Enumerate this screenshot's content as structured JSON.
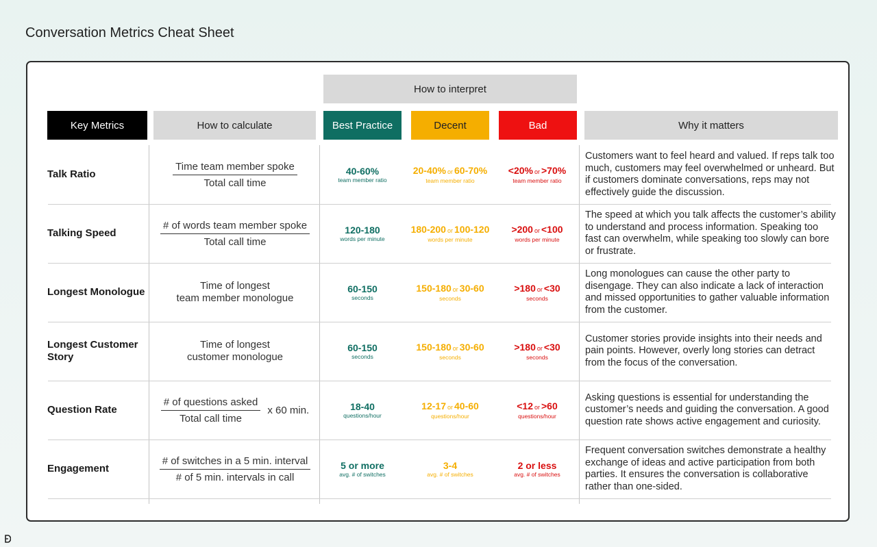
{
  "page_title": "Conversation Metrics Cheat Sheet",
  "headers": {
    "interpret": "How to interpret",
    "key_metrics": "Key Metrics",
    "calculate": "How to calculate",
    "best": "Best Practice",
    "decent": "Decent",
    "bad": "Bad",
    "why": "Why it matters"
  },
  "colors": {
    "best": "#0f6e62",
    "decent": "#f5ae00",
    "bad": "#ee1111",
    "header_gray": "#d9d9d9"
  },
  "rows": [
    {
      "name": "Talk Ratio",
      "calc": {
        "type": "fraction",
        "numerator": "Time team member spoke",
        "denominator": "Total call time",
        "multiplier": ""
      },
      "best": {
        "a": "40-60%",
        "or": "",
        "b": "",
        "sub": "team member ratio"
      },
      "decent": {
        "a": "20-40%",
        "or": "or",
        "b": "60-70%",
        "sub": "team member ratio"
      },
      "bad": {
        "a": "<20%",
        "or": "or",
        "b": ">70%",
        "sub": "team member ratio"
      },
      "why": "Customers want to feel heard and valued. If reps talk too much, customers may feel overwhelmed or unheard. But if customers dominate conversations, reps may not effectively guide the discussion."
    },
    {
      "name": "Talking Speed",
      "calc": {
        "type": "fraction",
        "numerator": "# of words team member spoke",
        "denominator": "Total call time",
        "multiplier": ""
      },
      "best": {
        "a": "120-180",
        "or": "",
        "b": "",
        "sub": "words per minute"
      },
      "decent": {
        "a": "180-200",
        "or": "or",
        "b": "100-120",
        "sub": "words per minute"
      },
      "bad": {
        "a": ">200",
        "or": "or",
        "b": "<100",
        "sub": "words per minute"
      },
      "why": "The speed at which you talk affects the customer’s ability to understand and process information. Speaking too fast can overwhelm, while speaking too slowly can bore or frustrate."
    },
    {
      "name": "Longest Monologue",
      "calc": {
        "type": "text",
        "line1": "Time of longest",
        "line2": "team member monologue"
      },
      "best": {
        "a": "60-150",
        "or": "",
        "b": "",
        "sub": "seconds"
      },
      "decent": {
        "a": "150-180",
        "or": "or",
        "b": "30-60",
        "sub": "seconds"
      },
      "bad": {
        "a": ">180",
        "or": "or",
        "b": "<30",
        "sub": "seconds"
      },
      "why": "Long monologues can cause the other party to disengage. They can also indicate a lack of interaction and missed opportunities to gather valuable information from the customer."
    },
    {
      "name": "Longest Customer Story",
      "calc": {
        "type": "text",
        "line1": "Time of longest",
        "line2": "customer monologue"
      },
      "best": {
        "a": "60-150",
        "or": "",
        "b": "",
        "sub": "seconds"
      },
      "decent": {
        "a": "150-180",
        "or": "or",
        "b": "30-60",
        "sub": "seconds"
      },
      "bad": {
        "a": ">180",
        "or": "or",
        "b": "<30",
        "sub": "seconds"
      },
      "why": "Customer stories provide insights into their needs and pain points. However, overly long stories can detract from the focus of the conversation."
    },
    {
      "name": "Question Rate",
      "calc": {
        "type": "fraction",
        "numerator": "# of questions asked",
        "denominator": "Total call time",
        "multiplier": "x 60 min."
      },
      "best": {
        "a": "18-40",
        "or": "",
        "b": "",
        "sub": "questions/hour"
      },
      "decent": {
        "a": "12-17",
        "or": "or",
        "b": "40-60",
        "sub": "questions/hour"
      },
      "bad": {
        "a": "<12",
        "or": "or",
        "b": ">60",
        "sub": "questions/hour"
      },
      "why": "Asking questions is essential for understanding the customer’s needs and guiding the conversation. A good question rate shows active engagement and curiosity."
    },
    {
      "name": "Engagement",
      "calc": {
        "type": "fraction",
        "numerator": "# of switches in a 5 min. interval",
        "denominator": "# of 5 min. intervals in call",
        "multiplier": ""
      },
      "best": {
        "a": "5 or more",
        "or": "",
        "b": "",
        "sub": "avg. # of switches"
      },
      "decent": {
        "a": "3-4",
        "or": "",
        "b": "",
        "sub": "avg. # of switches"
      },
      "bad": {
        "a": "2 or less",
        "or": "",
        "b": "",
        "sub": "avg. # of switches"
      },
      "why": "Frequent conversation switches demonstrate a healthy exchange of ideas and active participation from both parties. It ensures the conversation is collaborative rather than one-sided."
    }
  ]
}
